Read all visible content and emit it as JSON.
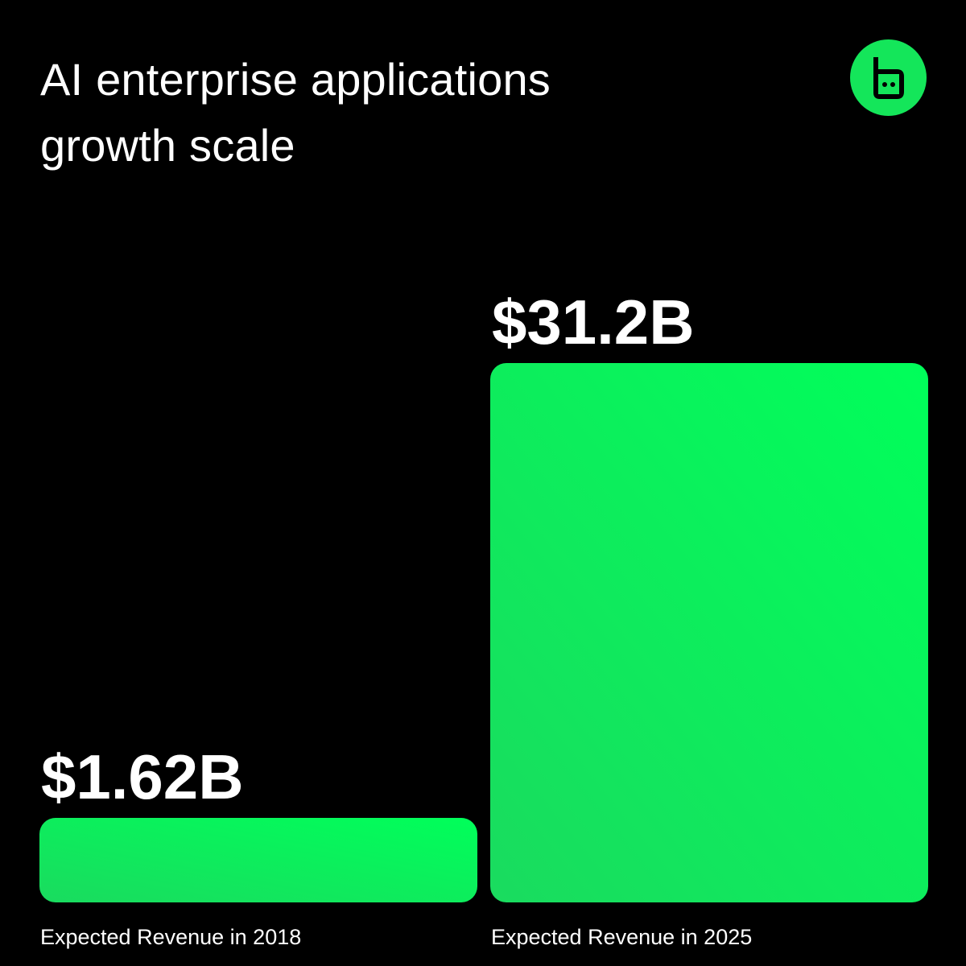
{
  "header": {
    "title_line1": "AI enterprise applications",
    "title_line2": "growth scale"
  },
  "logo": {
    "icon": "brand-logo-icon",
    "color": "#14E65A"
  },
  "colors": {
    "background": "#000000",
    "bar_top": "#00FF5A",
    "bar_bottom": "#1ADB5F",
    "text": "#FFFFFF"
  },
  "chart_data": {
    "type": "bar",
    "categories": [
      "Expected Revenue in 2018",
      "Expected Revenue in 2025"
    ],
    "values": [
      1.62,
      31.2
    ],
    "value_labels": [
      "$1.62B",
      "$31.2B"
    ],
    "xlabel": "",
    "ylabel": "",
    "ylim": [
      0,
      31.2
    ],
    "grid": false
  }
}
